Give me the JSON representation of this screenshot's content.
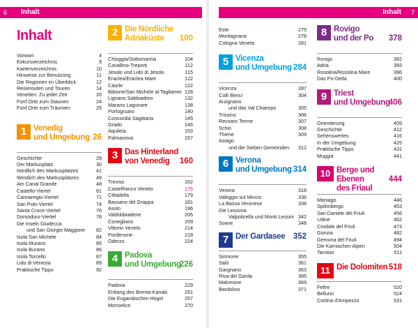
{
  "left_page": {
    "page_number": "6",
    "section": "Inhalt",
    "heading": "Inhalt",
    "intro": [
      {
        "t": "Vorwort",
        "n": "4"
      },
      {
        "t": "Exkursverzeichnis",
        "n": "9"
      },
      {
        "t": "Kartenverzeichnis",
        "n": "10"
      },
      {
        "t": "Hinweise zur Benutzung",
        "n": "11"
      },
      {
        "t": "Die Regionen im Überblick",
        "n": "12"
      },
      {
        "t": "Reiserouten und Touren",
        "n": "14"
      },
      {
        "t": "Venetien: Zu jeder Zeit",
        "n": "20"
      },
      {
        "t": "Fünf Orte zum Staunen",
        "n": "24"
      },
      {
        "t": "Fünf Orte zum Träumen",
        "n": "25"
      }
    ],
    "chapters": [
      {
        "num": "1",
        "name_line1": "Venedig",
        "name_line2": "und Umgebung",
        "page": "26",
        "color": "#f39200",
        "items": [
          {
            "t": "Geschichte",
            "n": "28"
          },
          {
            "t": "Der Markusplatz",
            "n": "30"
          },
          {
            "t": "Nördlich des Markusplatzes",
            "n": "41"
          },
          {
            "t": "Westlich des Markusplatzes",
            "n": "49"
          },
          {
            "t": "Am Canal Grande",
            "n": "48"
          },
          {
            "t": "Castello-Viertel",
            "n": "61"
          },
          {
            "t": "Cannaregio-Viertel",
            "n": "71"
          },
          {
            "t": "San Polo-Viertel",
            "n": "74"
          },
          {
            "t": "Santa Croce-Viertel",
            "n": "76"
          },
          {
            "t": "Dorsoduro-Viertel",
            "n": "78"
          },
          {
            "t": "Die Inseln Giudecca",
            "n": ""
          },
          {
            "t": "und San Giorgio Maggiore",
            "n": "82",
            "indent": true
          },
          {
            "t": "Isola San Michele",
            "n": "84"
          },
          {
            "t": "Isola Murano",
            "n": "85"
          },
          {
            "t": "Isola Burano",
            "n": "86"
          },
          {
            "t": "Isola Torcello",
            "n": "87"
          },
          {
            "t": "Lido di Venezia",
            "n": "89"
          },
          {
            "t": "Praktische Tipps",
            "n": "92"
          }
        ]
      },
      {
        "num": "2",
        "name_line1": "Die Nördliche",
        "name_line2": "Adriaküste",
        "page": "100",
        "color": "#f9b000",
        "items": [
          {
            "t": "Chioggia/Sottomarina",
            "n": "104"
          },
          {
            "t": "Cavallino-Treporti",
            "n": "112"
          },
          {
            "t": "Jèsolo und Lido di Jèsolo",
            "n": "115"
          },
          {
            "t": "Eraclea/Eraclea Mare",
            "n": "122"
          },
          {
            "t": "Càorle",
            "n": "122"
          },
          {
            "t": "Bibione/San Michele al Tagliamento",
            "n": "128"
          },
          {
            "t": "Lignano Sabbiadoro",
            "n": "132"
          },
          {
            "t": "Marano Lagunare",
            "n": "138"
          },
          {
            "t": "Portogruaro",
            "n": "140"
          },
          {
            "t": "Concordia Sagittaria",
            "n": "145"
          },
          {
            "t": "Grado",
            "n": "146"
          },
          {
            "t": "Aquileia",
            "n": "153"
          },
          {
            "t": "Palmanova",
            "n": "157"
          }
        ]
      },
      {
        "num": "3",
        "name_line1": "Das Hinterland",
        "name_line2": "von Venedig",
        "page": "160",
        "color": "#e30613",
        "items": [
          {
            "t": "Treviso",
            "n": "162"
          },
          {
            "t": "Castelfranco Veneto",
            "n": "176",
            "hl": true
          },
          {
            "t": "Cittadella",
            "n": "179"
          },
          {
            "t": "Bassano del Grappa",
            "n": "181"
          },
          {
            "t": "Asolo",
            "n": "196"
          },
          {
            "t": "Valdobbiadene",
            "n": "205"
          },
          {
            "t": "Conegliano",
            "n": "209"
          },
          {
            "t": "Vittorio Veneto",
            "n": "214"
          },
          {
            "t": "Pordenone",
            "n": "218"
          },
          {
            "t": "Oderzo",
            "n": "224"
          }
        ]
      },
      {
        "num": "4",
        "name_line1": "Padova",
        "name_line2": "und Umgebung",
        "page": "226",
        "color": "#3aaa35",
        "items": [
          {
            "t": "Padova",
            "n": "229"
          },
          {
            "t": "Entlang des Brenta-Kanals",
            "n": "251"
          },
          {
            "t": "Die Euganäischen Hügel",
            "n": "257"
          },
          {
            "t": "Monselice",
            "n": "270"
          }
        ]
      }
    ]
  },
  "right_page": {
    "page_number": "7",
    "section": "Inhalt",
    "top_items": [
      {
        "t": "Este",
        "n": "275"
      },
      {
        "t": "Montagnana",
        "n": "278"
      },
      {
        "t": "Cologna Veneta",
        "n": "281"
      }
    ],
    "chapters": [
      {
        "num": "5",
        "name_line1": "Vicenza",
        "name_line2": "und Umgebung",
        "page": "284",
        "color": "#00a0e3",
        "items": [
          {
            "t": "Vicenza",
            "n": "287"
          },
          {
            "t": "Colli Berici",
            "n": "304"
          },
          {
            "t": "Arzignano",
            "n": ""
          },
          {
            "t": "und das Val Chiampo",
            "n": "305",
            "indent": true
          },
          {
            "t": "Trissino",
            "n": "306"
          },
          {
            "t": "Recoaro Terme",
            "n": "307"
          },
          {
            "t": "Schio",
            "n": "308"
          },
          {
            "t": "Thiene",
            "n": "309"
          },
          {
            "t": "Asiago",
            "n": ""
          },
          {
            "t": "und die Sieben Gemeinden",
            "n": "312",
            "indent": true
          }
        ]
      },
      {
        "num": "6",
        "name_line1": "Verona",
        "name_line2": "und Umgebung",
        "page": "314",
        "color": "#0077c0",
        "items": [
          {
            "t": "Verona",
            "n": "318"
          },
          {
            "t": "Valeggio sul Mincio",
            "n": "336"
          },
          {
            "t": "La Bassa Veronese",
            "n": "338"
          },
          {
            "t": "Die Lessinia:",
            "n": ""
          },
          {
            "t": "Valpolicella und Monti Lessini",
            "n": "342",
            "indent": true
          },
          {
            "t": "Soave",
            "n": "348"
          }
        ]
      },
      {
        "num": "7",
        "name_line1": "Der Gardasee",
        "name_line2": "",
        "page": "352",
        "color": "#1d3c8f",
        "items": [
          {
            "t": "Sirmione",
            "n": "355"
          },
          {
            "t": "Salò",
            "n": "361"
          },
          {
            "t": "Gargnano",
            "n": "363"
          },
          {
            "t": "Riva del Garda",
            "n": "365"
          },
          {
            "t": "Malcesine",
            "n": "369"
          },
          {
            "t": "Bardolino",
            "n": "371"
          }
        ]
      },
      {
        "num": "8",
        "name_line1": "Rovigo",
        "name_line2": "und der Po",
        "page": "378",
        "color": "#7b2a87",
        "items": [
          {
            "t": "Rovigo",
            "n": "382"
          },
          {
            "t": "Adria",
            "n": "393"
          },
          {
            "t": "Rosolina/Rosolina Mare",
            "n": "396"
          },
          {
            "t": "Das Po-Delta",
            "n": "400"
          }
        ]
      },
      {
        "num": "9",
        "name_line1": "Triest",
        "name_line2": "und Umgebung",
        "page": "406",
        "color": "#b1197b",
        "items": [
          {
            "t": "Orientierung",
            "n": "409"
          },
          {
            "t": "Geschichte",
            "n": "412"
          },
          {
            "t": "Sehenswertes",
            "n": "416"
          },
          {
            "t": "In der Umgebung",
            "n": "425"
          },
          {
            "t": "Praktische Tipps",
            "n": "431"
          },
          {
            "t": "Muggia",
            "n": "441"
          }
        ]
      },
      {
        "num": "10",
        "name_line1": "Berge und Ebenen",
        "name_line2": "des Friaul",
        "page": "444",
        "color": "#d6006f",
        "items": [
          {
            "t": "Maniago",
            "n": "446"
          },
          {
            "t": "Spilimbergo",
            "n": "453"
          },
          {
            "t": "San Daniele del Friuli",
            "n": "456"
          },
          {
            "t": "Udine",
            "n": "462"
          },
          {
            "t": "Cividale del Friuli",
            "n": "473"
          },
          {
            "t": "Gorizia",
            "n": "482"
          },
          {
            "t": "Gemona del Friuli",
            "n": "494"
          },
          {
            "t": "Die Karnischen Alpen",
            "n": "504"
          },
          {
            "t": "Tarvisio",
            "n": "511"
          }
        ]
      },
      {
        "num": "11",
        "name_line1": "Die Dolomiten",
        "name_line2": "",
        "page": "518",
        "color": "#e30613",
        "items": [
          {
            "t": "Feltre",
            "n": "520"
          },
          {
            "t": "Belluno",
            "n": "524"
          },
          {
            "t": "Cortina d'Ampezzo",
            "n": "531"
          }
        ]
      }
    ]
  }
}
